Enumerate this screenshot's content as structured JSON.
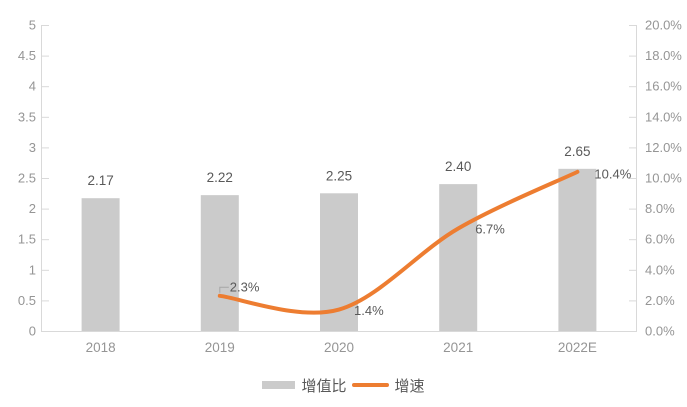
{
  "chart_data": {
    "type": "combo-bar-line",
    "title": "",
    "categories": [
      "2018",
      "2019",
      "2020",
      "2021",
      "2022E"
    ],
    "series": [
      {
        "name": "增值比",
        "type": "bar",
        "axis": "left",
        "values": [
          2.17,
          2.22,
          2.25,
          2.4,
          2.65
        ],
        "data_labels": [
          "2.17",
          "2.22",
          "2.25",
          "2.40",
          "2.65"
        ]
      },
      {
        "name": "增速",
        "type": "line",
        "axis": "right",
        "smooth": true,
        "values": [
          null,
          2.3,
          1.4,
          6.7,
          10.4
        ],
        "data_labels": [
          null,
          "2.3%",
          "1.4%",
          "6.7%",
          "10.4%"
        ],
        "label_offsets": [
          null,
          {
            "dx": 10,
            "dy": -4.5,
            "callout": true
          },
          {
            "dx": 15,
            "dy": 5.5
          },
          {
            "dx": 17,
            "dy": 5
          },
          {
            "dx": 17,
            "dy": 6.5
          }
        ]
      }
    ],
    "left_axis": {
      "min": 0,
      "max": 5,
      "step": 0.5,
      "tick_labels": [
        "5",
        "4.5",
        "4",
        "3.5",
        "3",
        "2.5",
        "2",
        "1.5",
        "1",
        "0.5",
        "0"
      ]
    },
    "right_axis": {
      "min": 0,
      "max": 20,
      "step": 2,
      "tick_labels": [
        "20.0%",
        "18.0%",
        "16.0%",
        "14.0%",
        "12.0%",
        "10.0%",
        "8.0%",
        "6.0%",
        "4.0%",
        "2.0%",
        "0.0%"
      ]
    },
    "grid": false,
    "legend_position": "bottom-center"
  },
  "colors": {
    "background": "#FFFFFF",
    "bar": "#CBCBCB",
    "line": "#ED7D31",
    "axis_line": "#D9D9D9",
    "axis_label": "#959595",
    "data_label": "#595959",
    "callout": "#A6A6A6"
  }
}
